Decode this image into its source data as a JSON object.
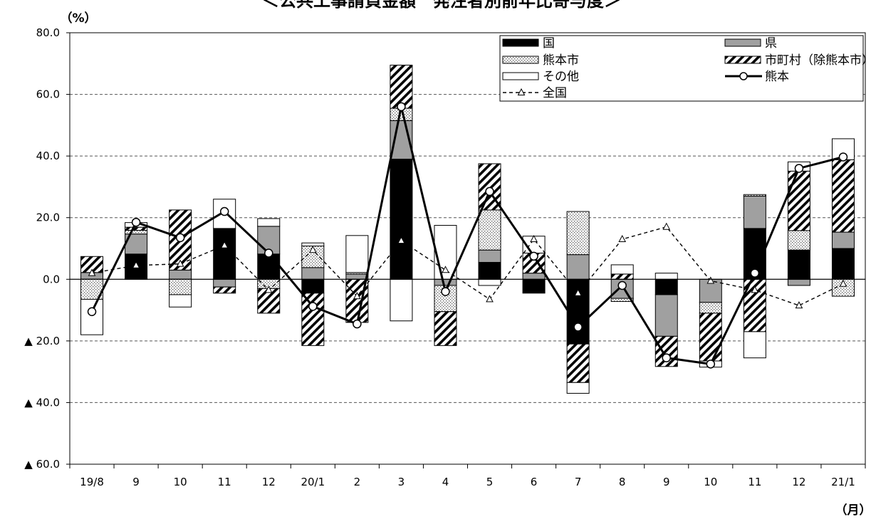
{
  "chart_data": {
    "type": "bar",
    "title": "＜公共工事請負金額　発注者別前年比寄与度＞",
    "y_unit_label": "（%）",
    "x_unit_label": "（月）",
    "ylim": [
      -60,
      80
    ],
    "y_ticks": [
      {
        "value": 80,
        "label": "80.0"
      },
      {
        "value": 60,
        "label": "60.0"
      },
      {
        "value": 40,
        "label": "40.0"
      },
      {
        "value": 20,
        "label": "20.0"
      },
      {
        "value": 0,
        "label": "0.0"
      },
      {
        "value": -20,
        "label": "▲ 20.0"
      },
      {
        "value": -40,
        "label": "▲ 40.0"
      },
      {
        "value": -60,
        "label": "▲ 60.0"
      }
    ],
    "grid": "horizontal dashed",
    "legend_position": "top-right",
    "categories": [
      "19/8",
      "9",
      "10",
      "11",
      "12",
      "20/1",
      "2",
      "3",
      "4",
      "5",
      "6",
      "7",
      "8",
      "9",
      "10",
      "11",
      "12",
      "21/1"
    ],
    "bar_series": [
      {
        "name": "国",
        "fill": "black",
        "values": [
          0,
          8.2,
          0,
          16.5,
          8.2,
          -4.5,
          0,
          39,
          0,
          5.5,
          -4.5,
          -21,
          0,
          -5,
          0,
          16.5,
          9.5,
          10
        ]
      },
      {
        "name": "県",
        "fill": "gray",
        "values": [
          2.2,
          6.5,
          3,
          -2.5,
          9,
          3.8,
          1.7,
          12.5,
          -2,
          4,
          2,
          8,
          -6.2,
          -13.5,
          -7.5,
          10.5,
          -2,
          5.3
        ]
      },
      {
        "name": "熊本市",
        "fill": "dots",
        "values": [
          -6.5,
          1.2,
          -5,
          0,
          -3,
          7,
          0.5,
          4,
          -8.5,
          13,
          0,
          14,
          -1,
          0,
          -3.5,
          0.5,
          6.3,
          -5.5
        ]
      },
      {
        "name": "市町村（除熊本市）",
        "fill": "hatch",
        "values": [
          5.2,
          1,
          19.5,
          -2,
          -8,
          -17,
          -14,
          14,
          -11,
          15,
          6.5,
          -12.5,
          1.7,
          -9.8,
          -15.5,
          -17,
          19.3,
          23.5
        ]
      },
      {
        "name": "その他",
        "fill": "white",
        "values": [
          -11.5,
          1.5,
          -4,
          9.5,
          2.5,
          1,
          12,
          -13.5,
          17.5,
          -2,
          5.5,
          -3.5,
          3,
          2,
          -2,
          -8.5,
          3,
          6.8
        ]
      }
    ],
    "line_series": [
      {
        "name": "熊本",
        "style": "solid-circle",
        "values": [
          -10.5,
          18.5,
          13.5,
          22,
          8.5,
          -8.8,
          -14.5,
          56,
          -4,
          28.5,
          7.5,
          -15.5,
          -2,
          -25.5,
          -27.5,
          2,
          36,
          39.7
        ]
      },
      {
        "name": "全国",
        "style": "dashed-triangle",
        "values": [
          2,
          4.5,
          5,
          11,
          -3.5,
          9.5,
          -5.5,
          12.5,
          3,
          -6.5,
          13,
          -4.5,
          13,
          17,
          -0.5,
          -3.5,
          -8.5,
          -1.5
        ]
      }
    ]
  }
}
